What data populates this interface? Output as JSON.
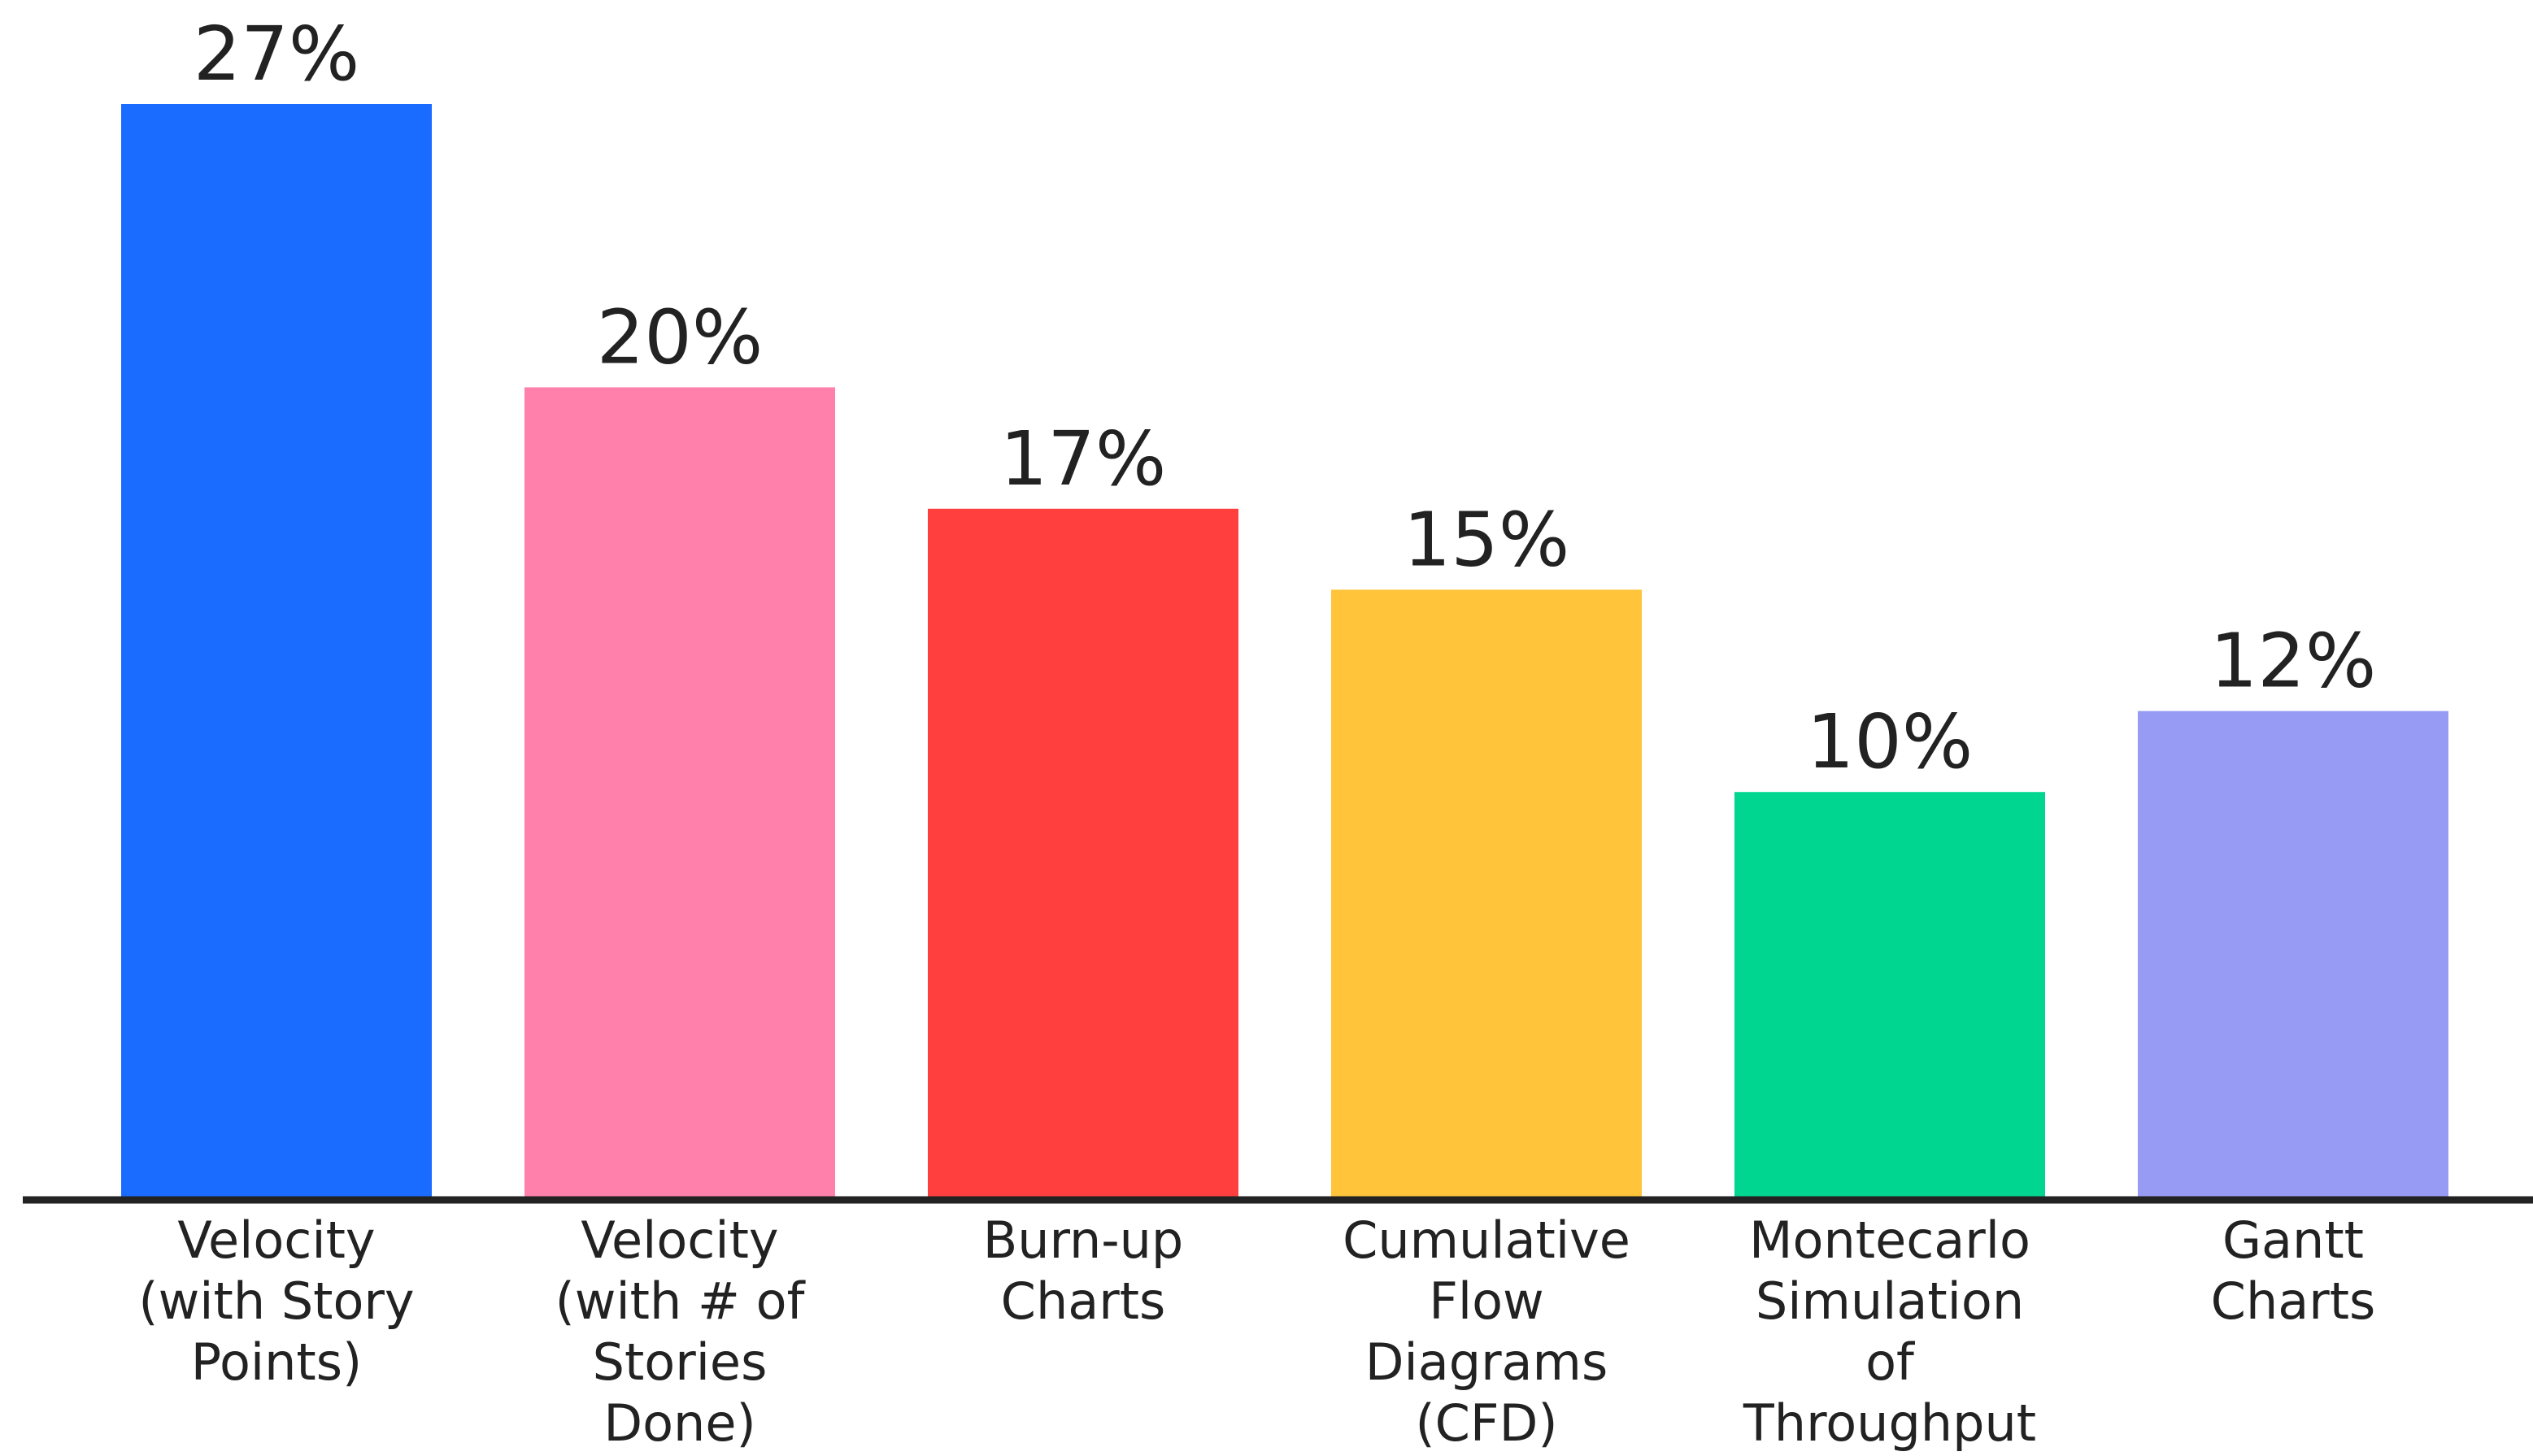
{
  "chart_data": {
    "type": "bar",
    "title": "",
    "xlabel": "",
    "ylabel": "",
    "ylim": [
      0,
      27
    ],
    "grid": false,
    "legend": "none",
    "categories": [
      "Velocity (with Story Points)",
      "Velocity (with # of Stories Done)",
      "Burn-up Charts",
      "Cumulative Flow Diagrams (CFD)",
      "Montecarlo Simulation of Throughput",
      "Gantt Charts"
    ],
    "category_lines": [
      [
        "Velocity",
        "(with Story",
        "Points)"
      ],
      [
        "Velocity",
        "(with # of",
        "Stories",
        "Done)"
      ],
      [
        "Burn-up",
        "Charts"
      ],
      [
        "Cumulative",
        "Flow",
        "Diagrams",
        "(CFD)"
      ],
      [
        "Montecarlo",
        "Simulation",
        "of",
        "Throughput"
      ],
      [
        "Gantt",
        "Charts"
      ]
    ],
    "values": [
      27,
      20,
      17,
      15,
      10,
      12
    ],
    "value_labels": [
      "27%",
      "20%",
      "17%",
      "15%",
      "10%",
      "12%"
    ],
    "colors": [
      "#1a6bff",
      "#ff80aa",
      "#ff3f3d",
      "#ffc43a",
      "#00d68f",
      "#979bf4"
    ],
    "axis_color": "#222222"
  }
}
